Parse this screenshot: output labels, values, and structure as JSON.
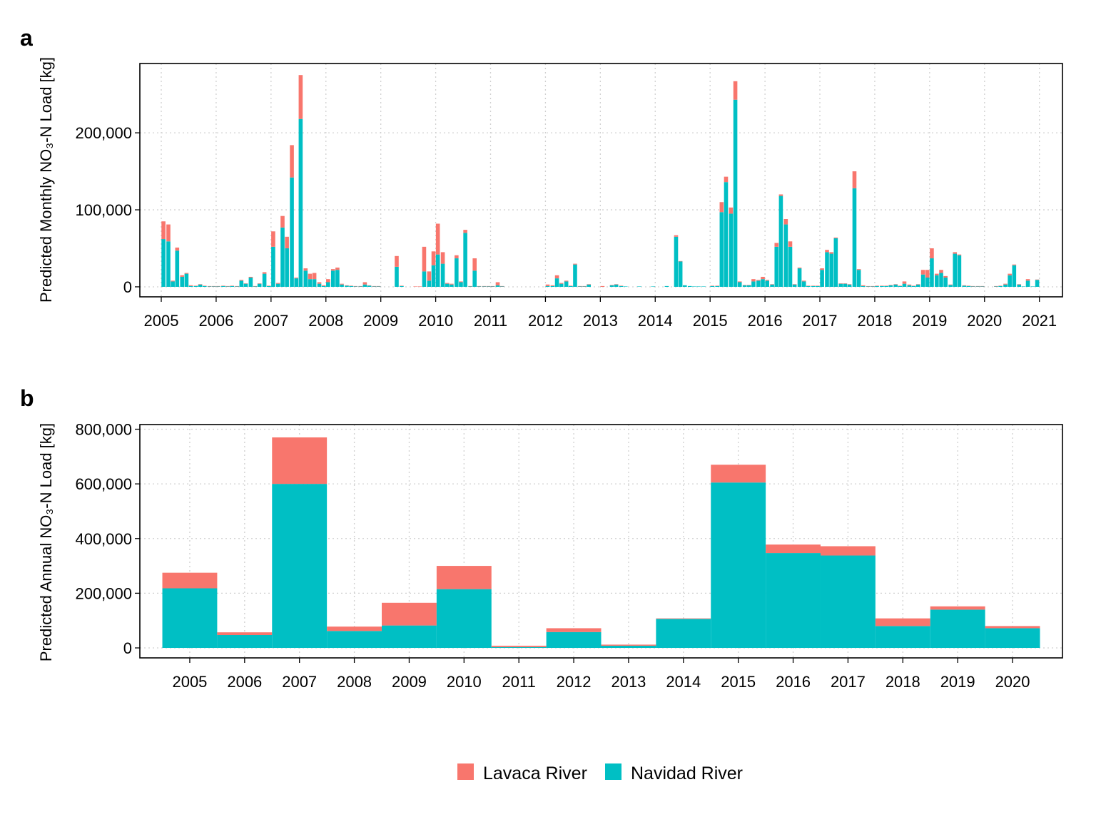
{
  "chart_data": [
    {
      "type": "stacked_bar",
      "panel_label": "a",
      "y_label": "Predicted Monthly NO₃-N Load [kg]",
      "xlim": [
        2004.61,
        2021.42
      ],
      "xticks": [
        2005,
        2006,
        2007,
        2008,
        2009,
        2010,
        2011,
        2012,
        2013,
        2014,
        2015,
        2016,
        2017,
        2018,
        2019,
        2020,
        2021
      ],
      "ylim": [
        -13000,
        290000
      ],
      "yticks": [
        0,
        {
          "value": 100000,
          "label": "100,000"
        },
        {
          "value": 200000,
          "label": "200,000"
        }
      ],
      "grid": true,
      "x": [
        2005.04,
        2005.13,
        2005.21,
        2005.29,
        2005.38,
        2005.46,
        2005.54,
        2005.63,
        2005.71,
        2005.79,
        2005.88,
        2005.96,
        2006.04,
        2006.13,
        2006.21,
        2006.29,
        2006.38,
        2006.46,
        2006.54,
        2006.63,
        2006.71,
        2006.79,
        2006.88,
        2006.96,
        2007.04,
        2007.13,
        2007.21,
        2007.29,
        2007.38,
        2007.46,
        2007.54,
        2007.63,
        2007.71,
        2007.79,
        2007.88,
        2007.96,
        2008.04,
        2008.13,
        2008.21,
        2008.29,
        2008.38,
        2008.46,
        2008.54,
        2008.63,
        2008.71,
        2008.79,
        2008.88,
        2008.96,
        2009.04,
        2009.13,
        2009.21,
        2009.29,
        2009.38,
        2009.46,
        2009.54,
        2009.63,
        2009.71,
        2009.79,
        2009.88,
        2009.96,
        2010.04,
        2010.13,
        2010.21,
        2010.29,
        2010.38,
        2010.46,
        2010.54,
        2010.63,
        2010.71,
        2010.79,
        2010.88,
        2010.96,
        2011.04,
        2011.13,
        2011.21,
        2011.29,
        2011.38,
        2011.46,
        2011.54,
        2011.63,
        2011.71,
        2011.79,
        2011.88,
        2011.96,
        2012.04,
        2012.13,
        2012.21,
        2012.29,
        2012.38,
        2012.46,
        2012.54,
        2012.63,
        2012.71,
        2012.79,
        2012.88,
        2012.96,
        2013.04,
        2013.13,
        2013.21,
        2013.29,
        2013.38,
        2013.46,
        2013.54,
        2013.63,
        2013.71,
        2013.79,
        2013.88,
        2013.96,
        2014.04,
        2014.13,
        2014.21,
        2014.29,
        2014.38,
        2014.46,
        2014.54,
        2014.63,
        2014.71,
        2014.79,
        2014.88,
        2014.96,
        2015.04,
        2015.13,
        2015.21,
        2015.29,
        2015.38,
        2015.46,
        2015.54,
        2015.63,
        2015.71,
        2015.79,
        2015.88,
        2015.96,
        2016.04,
        2016.13,
        2016.21,
        2016.29,
        2016.38,
        2016.46,
        2016.54,
        2016.63,
        2016.71,
        2016.79,
        2016.88,
        2016.96,
        2017.04,
        2017.13,
        2017.21,
        2017.29,
        2017.38,
        2017.46,
        2017.54,
        2017.63,
        2017.71,
        2017.79,
        2017.88,
        2017.96,
        2018.04,
        2018.13,
        2018.21,
        2018.29,
        2018.38,
        2018.46,
        2018.54,
        2018.63,
        2018.71,
        2018.79,
        2018.88,
        2018.96,
        2019.04,
        2019.13,
        2019.21,
        2019.29,
        2019.38,
        2019.46,
        2019.54,
        2019.63,
        2019.71,
        2019.79,
        2019.88,
        2019.96,
        2020.04,
        2020.13,
        2020.21,
        2020.29,
        2020.38,
        2020.46,
        2020.54,
        2020.63,
        2020.71,
        2020.79,
        2020.88,
        2020.96
      ],
      "series": [
        {
          "name": "Lavaca River",
          "color": "#F8766D",
          "values": [
            23000,
            22000,
            1000,
            4000,
            2000,
            1000,
            1000,
            500,
            500,
            500,
            500,
            500,
            500,
            500,
            500,
            500,
            500,
            1000,
            500,
            1000,
            500,
            500,
            2000,
            500,
            20000,
            1000,
            15000,
            15000,
            42000,
            1000,
            57000,
            3000,
            7000,
            8000,
            2000,
            1000,
            4000,
            2000,
            3000,
            1000,
            500,
            500,
            500,
            500,
            3000,
            500,
            500,
            500,
            0,
            0,
            0,
            14000,
            500,
            0,
            0,
            500,
            500,
            32000,
            12000,
            18000,
            40000,
            15000,
            1000,
            1000,
            4000,
            1000,
            4000,
            500,
            16000,
            500,
            500,
            500,
            500,
            4000,
            500,
            0,
            0,
            0,
            0,
            0,
            0,
            0,
            0,
            0,
            2000,
            1000,
            4000,
            1000,
            1000,
            500,
            1000,
            500,
            500,
            500,
            0,
            0,
            1000,
            0,
            500,
            500,
            500,
            0,
            0,
            0,
            0,
            0,
            0,
            0,
            0,
            0,
            0,
            0,
            2000,
            500,
            0,
            0,
            0,
            0,
            0,
            0,
            500,
            500,
            13000,
            7000,
            8000,
            24000,
            1000,
            500,
            500,
            3000,
            1000,
            3000,
            1000,
            500,
            5000,
            2000,
            7000,
            7000,
            500,
            1000,
            1000,
            500,
            500,
            500,
            2000,
            3000,
            2000,
            1000,
            500,
            500,
            500,
            22000,
            1000,
            1000,
            500,
            500,
            500,
            500,
            500,
            500,
            500,
            500,
            3000,
            1000,
            500,
            500,
            6000,
            10000,
            13000,
            2000,
            4000,
            2000,
            500,
            2000,
            1000,
            500,
            500,
            500,
            500,
            500,
            0,
            0,
            500,
            500,
            1000,
            2000,
            1000,
            500,
            0,
            2000,
            0,
            500
          ]
        },
        {
          "name": "Navidad River",
          "color": "#00BFC4",
          "values": [
            62000,
            59000,
            7000,
            47000,
            13000,
            17000,
            1000,
            1000,
            3000,
            1000,
            500,
            500,
            500,
            1000,
            500,
            1000,
            500,
            8000,
            4000,
            12000,
            500,
            4000,
            17000,
            1000,
            52000,
            4000,
            77000,
            50000,
            142000,
            11000,
            218000,
            21000,
            10000,
            10000,
            4000,
            1000,
            6000,
            21000,
            22000,
            3000,
            1500,
            1000,
            500,
            500,
            3000,
            1500,
            500,
            500,
            0,
            0,
            0,
            26000,
            1000,
            0,
            0,
            0,
            0,
            20000,
            8000,
            28000,
            42000,
            30000,
            4000,
            3000,
            37000,
            6000,
            70000,
            500,
            21000,
            500,
            500,
            500,
            500,
            2000,
            500,
            0,
            0,
            0,
            0,
            0,
            0,
            0,
            0,
            0,
            1000,
            1000,
            11000,
            4000,
            7000,
            1000,
            29000,
            500,
            500,
            3000,
            0,
            0,
            0,
            0,
            2000,
            3000,
            1000,
            500,
            0,
            0,
            500,
            0,
            0,
            500,
            0,
            0,
            1000,
            0,
            65000,
            33000,
            2000,
            1000,
            500,
            500,
            500,
            0,
            1000,
            1000,
            97000,
            136000,
            95000,
            243000,
            6000,
            2000,
            2000,
            7000,
            8000,
            10000,
            8000,
            3000,
            52000,
            118000,
            81000,
            52000,
            3000,
            24000,
            7000,
            1000,
            1000,
            1000,
            22000,
            45000,
            43000,
            63000,
            4000,
            4000,
            3000,
            128000,
            22000,
            1000,
            500,
            500,
            1000,
            1000,
            1000,
            2000,
            3000,
            1000,
            4000,
            2000,
            1000,
            3000,
            16000,
            12000,
            37000,
            15000,
            18000,
            12000,
            2500,
            43000,
            41000,
            1500,
            1000,
            500,
            500,
            500,
            0,
            0,
            500,
            1000,
            3000,
            15000,
            28000,
            3000,
            500,
            8000,
            500,
            9000
          ]
        }
      ]
    },
    {
      "type": "stacked_category_bar",
      "panel_label": "b",
      "y_label": "Predicted Annual NO₃-N Load [kg]",
      "categories": [
        "2005",
        "2006",
        "2007",
        "2008",
        "2009",
        "2010",
        "2011",
        "2012",
        "2013",
        "2014",
        "2015",
        "2016",
        "2017",
        "2018",
        "2019",
        "2020"
      ],
      "ylim": [
        -36500,
        817000
      ],
      "yticks": [
        0,
        {
          "value": 200000,
          "label": "200,000"
        },
        {
          "value": 400000,
          "label": "400,000"
        },
        {
          "value": 600000,
          "label": "600,000"
        },
        {
          "value": 800000,
          "label": "800,000"
        }
      ],
      "grid": true,
      "series": [
        {
          "name": "Lavaca River",
          "color": "#F8766D",
          "values": [
            57000,
            10000,
            170000,
            16000,
            83000,
            85000,
            5000,
            14000,
            4000,
            2000,
            65000,
            31000,
            34000,
            28000,
            12000,
            8000
          ]
        },
        {
          "name": "Navidad River",
          "color": "#00BFC4",
          "values": [
            218000,
            47000,
            600000,
            62000,
            82000,
            215000,
            3000,
            58000,
            8000,
            106000,
            605000,
            347000,
            338000,
            80000,
            140000,
            72000
          ]
        }
      ]
    }
  ]
}
